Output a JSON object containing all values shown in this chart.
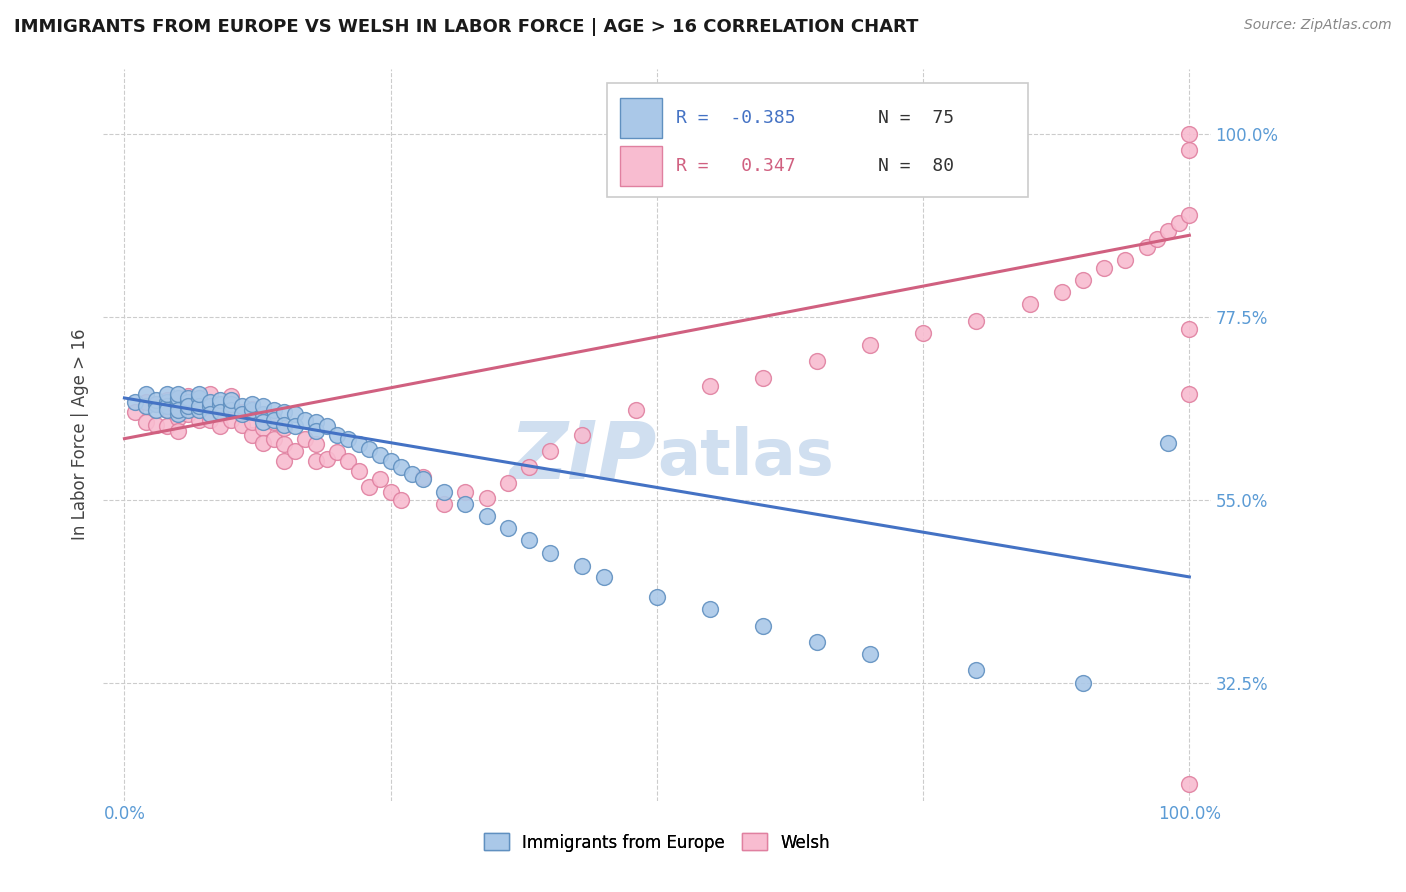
{
  "title": "IMMIGRANTS FROM EUROPE VS WELSH IN LABOR FORCE | AGE > 16 CORRELATION CHART",
  "source_text": "Source: ZipAtlas.com",
  "xlabel_blue": "Immigrants from Europe",
  "xlabel_pink": "Welsh",
  "ylabel": "In Labor Force | Age > 16",
  "xlim": [
    -0.02,
    1.02
  ],
  "ylim": [
    0.18,
    1.08
  ],
  "yticks": [
    0.325,
    0.55,
    0.775,
    1.0
  ],
  "ytick_labels": [
    "32.5%",
    "55.0%",
    "77.5%",
    "100.0%"
  ],
  "xtick_labels_left": "0.0%",
  "xtick_labels_right": "100.0%",
  "legend_R_blue": "-0.385",
  "legend_N_blue": "75",
  "legend_R_pink": "0.347",
  "legend_N_pink": "80",
  "blue_color": "#aac8e8",
  "blue_edge": "#6090c0",
  "pink_color": "#f8bcd0",
  "pink_edge": "#e080a0",
  "blue_line_color": "#4472c4",
  "pink_line_color": "#d06080",
  "watermark_color": "#d0dff0",
  "background_color": "#ffffff",
  "blue_line_x0": 0.0,
  "blue_line_y0": 0.675,
  "blue_line_x1": 1.0,
  "blue_line_y1": 0.455,
  "pink_line_x0": 0.0,
  "pink_line_y0": 0.625,
  "pink_line_x1": 1.0,
  "pink_line_y1": 0.875,
  "blue_x": [
    0.01,
    0.02,
    0.02,
    0.03,
    0.03,
    0.03,
    0.04,
    0.04,
    0.04,
    0.04,
    0.05,
    0.05,
    0.05,
    0.05,
    0.05,
    0.05,
    0.06,
    0.06,
    0.06,
    0.06,
    0.07,
    0.07,
    0.07,
    0.07,
    0.08,
    0.08,
    0.08,
    0.09,
    0.09,
    0.09,
    0.1,
    0.1,
    0.1,
    0.11,
    0.11,
    0.12,
    0.12,
    0.13,
    0.13,
    0.13,
    0.14,
    0.14,
    0.15,
    0.15,
    0.16,
    0.16,
    0.17,
    0.18,
    0.18,
    0.19,
    0.2,
    0.21,
    0.22,
    0.23,
    0.24,
    0.25,
    0.26,
    0.27,
    0.28,
    0.3,
    0.32,
    0.34,
    0.36,
    0.38,
    0.4,
    0.43,
    0.45,
    0.5,
    0.55,
    0.6,
    0.65,
    0.7,
    0.8,
    0.9,
    0.98
  ],
  "blue_y": [
    0.67,
    0.665,
    0.68,
    0.668,
    0.672,
    0.66,
    0.67,
    0.665,
    0.68,
    0.66,
    0.67,
    0.665,
    0.675,
    0.655,
    0.68,
    0.66,
    0.67,
    0.66,
    0.675,
    0.665,
    0.675,
    0.66,
    0.665,
    0.68,
    0.665,
    0.67,
    0.655,
    0.668,
    0.672,
    0.658,
    0.668,
    0.66,
    0.672,
    0.665,
    0.655,
    0.66,
    0.668,
    0.655,
    0.665,
    0.645,
    0.66,
    0.648,
    0.658,
    0.642,
    0.655,
    0.64,
    0.648,
    0.645,
    0.635,
    0.64,
    0.63,
    0.625,
    0.618,
    0.612,
    0.605,
    0.598,
    0.59,
    0.582,
    0.575,
    0.56,
    0.545,
    0.53,
    0.515,
    0.5,
    0.485,
    0.468,
    0.455,
    0.43,
    0.415,
    0.395,
    0.375,
    0.36,
    0.34,
    0.325,
    0.62
  ],
  "pink_x": [
    0.01,
    0.02,
    0.02,
    0.03,
    0.03,
    0.04,
    0.04,
    0.04,
    0.05,
    0.05,
    0.05,
    0.05,
    0.06,
    0.06,
    0.06,
    0.07,
    0.07,
    0.07,
    0.08,
    0.08,
    0.08,
    0.09,
    0.09,
    0.1,
    0.1,
    0.1,
    0.11,
    0.11,
    0.12,
    0.12,
    0.12,
    0.13,
    0.13,
    0.14,
    0.14,
    0.15,
    0.15,
    0.15,
    0.16,
    0.17,
    0.18,
    0.18,
    0.19,
    0.2,
    0.21,
    0.22,
    0.23,
    0.24,
    0.25,
    0.26,
    0.28,
    0.3,
    0.32,
    0.34,
    0.36,
    0.38,
    0.4,
    0.43,
    0.48,
    0.55,
    0.6,
    0.65,
    0.7,
    0.75,
    0.8,
    0.85,
    0.88,
    0.9,
    0.92,
    0.94,
    0.96,
    0.97,
    0.98,
    0.99,
    1.0,
    1.0,
    1.0,
    1.0,
    1.0,
    1.0
  ],
  "pink_y": [
    0.658,
    0.67,
    0.645,
    0.668,
    0.642,
    0.672,
    0.66,
    0.64,
    0.668,
    0.65,
    0.672,
    0.635,
    0.668,
    0.655,
    0.678,
    0.66,
    0.648,
    0.675,
    0.662,
    0.648,
    0.68,
    0.655,
    0.64,
    0.665,
    0.648,
    0.678,
    0.642,
    0.658,
    0.63,
    0.662,
    0.645,
    0.638,
    0.62,
    0.645,
    0.625,
    0.618,
    0.598,
    0.638,
    0.61,
    0.625,
    0.598,
    0.618,
    0.6,
    0.608,
    0.598,
    0.585,
    0.565,
    0.575,
    0.56,
    0.55,
    0.578,
    0.545,
    0.56,
    0.552,
    0.57,
    0.59,
    0.61,
    0.63,
    0.66,
    0.69,
    0.7,
    0.72,
    0.74,
    0.755,
    0.77,
    0.79,
    0.805,
    0.82,
    0.835,
    0.845,
    0.86,
    0.87,
    0.88,
    0.89,
    0.9,
    0.76,
    0.68,
    0.98,
    1.0,
    0.2
  ]
}
